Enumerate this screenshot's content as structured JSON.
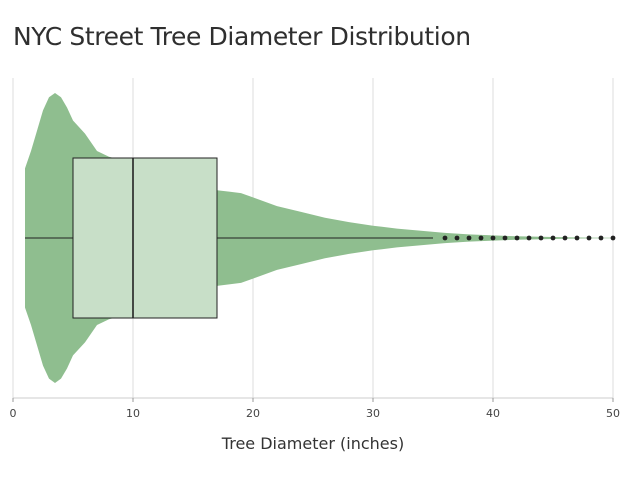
{
  "title": "NYC Street Tree Diameter Distribution",
  "chart_data": {
    "type": "violin_box",
    "title": "NYC Street Tree Diameter Distribution",
    "xlabel": "Tree Diameter (inches)",
    "ylabel": "",
    "xlim": [
      0,
      50
    ],
    "xticks": [
      0,
      10,
      20,
      30,
      40,
      50
    ],
    "grid": "vertical",
    "colors": {
      "violin": "#8fbe8f",
      "box_fill": "#c8dfc8",
      "box_stroke": "#222222",
      "grid": "#dddddd",
      "outlier": "#222222"
    },
    "box": {
      "q1": 5,
      "median": 10,
      "q3": 17,
      "whisker_low": 1,
      "whisker_high": 35
    },
    "outliers": [
      36,
      37,
      38,
      39,
      40,
      41,
      42,
      43,
      44,
      45,
      46,
      47,
      48,
      49,
      50
    ],
    "density": {
      "x": [
        1,
        1.5,
        2,
        2.5,
        3,
        3.5,
        4,
        4.5,
        5,
        6,
        7,
        8,
        9,
        10,
        11,
        12,
        13,
        14,
        15,
        16,
        17,
        18,
        19,
        20,
        22,
        24,
        26,
        28,
        30,
        32,
        34,
        36,
        38,
        40,
        42,
        44,
        46,
        48,
        50
      ],
      "y": [
        0.48,
        0.6,
        0.74,
        0.88,
        0.97,
        1.0,
        0.97,
        0.9,
        0.81,
        0.72,
        0.6,
        0.56,
        0.54,
        0.51,
        0.5,
        0.44,
        0.4,
        0.37,
        0.35,
        0.34,
        0.33,
        0.32,
        0.31,
        0.28,
        0.22,
        0.18,
        0.14,
        0.11,
        0.085,
        0.065,
        0.05,
        0.035,
        0.025,
        0.018,
        0.012,
        0.008,
        0.005,
        0.003,
        0.002
      ]
    }
  }
}
